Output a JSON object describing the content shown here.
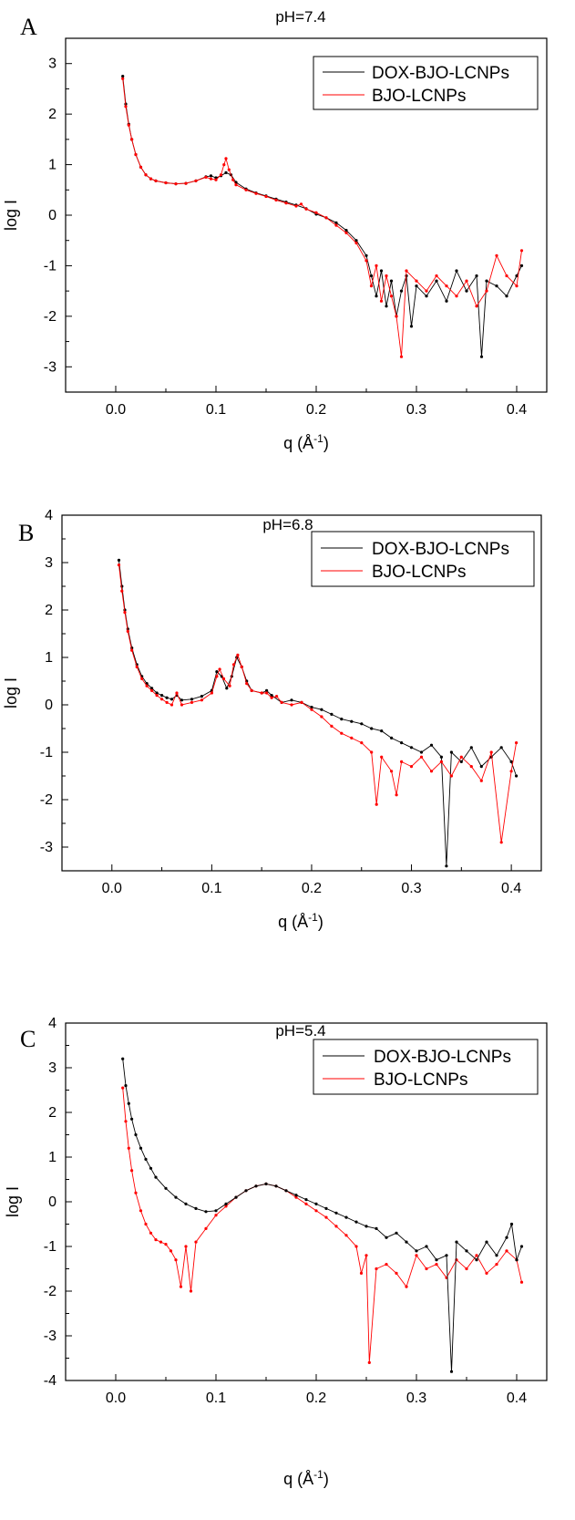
{
  "chart_data": [
    {
      "type": "line",
      "panel_label": "A",
      "title": "pH=7.4",
      "xlabel": "q (Å",
      "xlabel_sup": "-1",
      "xlabel_close": ")",
      "ylabel": "log I",
      "xlim": [
        -0.05,
        0.43
      ],
      "ylim": [
        -3.5,
        3.5
      ],
      "xticks": [
        "0.0",
        "0.1",
        "0.2",
        "0.3",
        "0.4"
      ],
      "yticks": [
        "3",
        "2",
        "1",
        "0",
        "-1",
        "-2",
        "-3"
      ],
      "legend_position": "top-right",
      "series": [
        {
          "name": "DOX-BJO-LCNPs",
          "color": "#000000",
          "x": [
            0.007,
            0.01,
            0.013,
            0.016,
            0.02,
            0.025,
            0.03,
            0.035,
            0.04,
            0.05,
            0.06,
            0.07,
            0.08,
            0.09,
            0.095,
            0.1,
            0.105,
            0.11,
            0.115,
            0.12,
            0.13,
            0.14,
            0.15,
            0.16,
            0.17,
            0.18,
            0.19,
            0.2,
            0.21,
            0.22,
            0.23,
            0.24,
            0.25,
            0.255,
            0.26,
            0.265,
            0.27,
            0.275,
            0.28,
            0.285,
            0.29,
            0.295,
            0.3,
            0.31,
            0.32,
            0.33,
            0.34,
            0.35,
            0.36,
            0.365,
            0.37,
            0.38,
            0.39,
            0.4,
            0.405
          ],
          "y": [
            2.75,
            2.2,
            1.8,
            1.5,
            1.2,
            0.95,
            0.8,
            0.72,
            0.68,
            0.64,
            0.62,
            0.63,
            0.68,
            0.76,
            0.78,
            0.74,
            0.78,
            0.84,
            0.8,
            0.65,
            0.52,
            0.44,
            0.38,
            0.32,
            0.26,
            0.2,
            0.13,
            0.02,
            -0.05,
            -0.15,
            -0.3,
            -0.5,
            -0.8,
            -1.2,
            -1.6,
            -1.1,
            -1.8,
            -1.3,
            -2.0,
            -1.5,
            -1.2,
            -2.2,
            -1.4,
            -1.6,
            -1.3,
            -1.7,
            -1.1,
            -1.5,
            -1.2,
            -2.8,
            -1.3,
            -1.4,
            -1.6,
            -1.2,
            -1.0
          ]
        },
        {
          "name": "BJO-LCNPs",
          "color": "#ff0000",
          "x": [
            0.007,
            0.01,
            0.013,
            0.016,
            0.02,
            0.025,
            0.03,
            0.035,
            0.04,
            0.05,
            0.06,
            0.07,
            0.08,
            0.09,
            0.095,
            0.1,
            0.105,
            0.108,
            0.11,
            0.113,
            0.117,
            0.12,
            0.13,
            0.14,
            0.15,
            0.16,
            0.17,
            0.18,
            0.185,
            0.19,
            0.2,
            0.21,
            0.22,
            0.23,
            0.24,
            0.25,
            0.255,
            0.26,
            0.265,
            0.27,
            0.275,
            0.28,
            0.285,
            0.29,
            0.3,
            0.31,
            0.32,
            0.33,
            0.34,
            0.35,
            0.36,
            0.37,
            0.38,
            0.39,
            0.4,
            0.405
          ],
          "y": [
            2.7,
            2.15,
            1.78,
            1.5,
            1.2,
            0.95,
            0.8,
            0.72,
            0.68,
            0.64,
            0.62,
            0.63,
            0.68,
            0.75,
            0.72,
            0.7,
            0.8,
            1.0,
            1.12,
            0.9,
            0.7,
            0.6,
            0.5,
            0.43,
            0.37,
            0.3,
            0.24,
            0.18,
            0.22,
            0.12,
            0.05,
            -0.05,
            -0.2,
            -0.35,
            -0.55,
            -0.9,
            -1.4,
            -1.0,
            -1.7,
            -1.2,
            -1.6,
            -2.0,
            -2.8,
            -1.1,
            -1.3,
            -1.5,
            -1.2,
            -1.4,
            -1.6,
            -1.3,
            -1.8,
            -1.5,
            -0.8,
            -1.2,
            -1.4,
            -0.7
          ]
        }
      ]
    },
    {
      "type": "line",
      "panel_label": "B",
      "title": "pH=6.8",
      "xlabel": "q (Å",
      "xlabel_sup": "-1",
      "xlabel_close": ")",
      "ylabel": "log I",
      "xlim": [
        -0.05,
        0.43
      ],
      "ylim": [
        -3.5,
        4.0
      ],
      "xticks": [
        "0.0",
        "0.1",
        "0.2",
        "0.3",
        "0.4"
      ],
      "yticks": [
        "4",
        "3",
        "2",
        "1",
        "0",
        "-1",
        "-2",
        "-3"
      ],
      "legend_position": "top-right",
      "series": [
        {
          "name": "DOX-BJO-LCNPs",
          "color": "#000000",
          "x": [
            0.007,
            0.01,
            0.013,
            0.016,
            0.02,
            0.025,
            0.03,
            0.035,
            0.04,
            0.045,
            0.05,
            0.055,
            0.06,
            0.065,
            0.07,
            0.08,
            0.09,
            0.1,
            0.105,
            0.11,
            0.115,
            0.12,
            0.125,
            0.13,
            0.135,
            0.14,
            0.15,
            0.155,
            0.16,
            0.17,
            0.18,
            0.19,
            0.2,
            0.21,
            0.22,
            0.23,
            0.24,
            0.25,
            0.26,
            0.27,
            0.28,
            0.29,
            0.3,
            0.31,
            0.32,
            0.33,
            0.335,
            0.34,
            0.35,
            0.36,
            0.37,
            0.38,
            0.39,
            0.4,
            0.405
          ],
          "y": [
            3.05,
            2.5,
            2.0,
            1.6,
            1.2,
            0.85,
            0.6,
            0.45,
            0.35,
            0.25,
            0.2,
            0.15,
            0.12,
            0.2,
            0.1,
            0.12,
            0.18,
            0.3,
            0.7,
            0.6,
            0.35,
            0.6,
            1.0,
            0.8,
            0.5,
            0.3,
            0.25,
            0.3,
            0.2,
            0.05,
            0.1,
            0.05,
            -0.05,
            -0.1,
            -0.2,
            -0.3,
            -0.35,
            -0.4,
            -0.5,
            -0.55,
            -0.7,
            -0.8,
            -0.9,
            -1.0,
            -0.85,
            -1.1,
            -3.4,
            -1.0,
            -1.2,
            -0.9,
            -1.3,
            -1.1,
            -0.9,
            -1.2,
            -1.5
          ]
        },
        {
          "name": "BJO-LCNPs",
          "color": "#ff0000",
          "x": [
            0.007,
            0.01,
            0.013,
            0.016,
            0.02,
            0.025,
            0.03,
            0.035,
            0.04,
            0.045,
            0.05,
            0.055,
            0.06,
            0.065,
            0.07,
            0.08,
            0.09,
            0.1,
            0.105,
            0.108,
            0.112,
            0.118,
            0.122,
            0.126,
            0.13,
            0.135,
            0.14,
            0.15,
            0.155,
            0.16,
            0.165,
            0.17,
            0.18,
            0.19,
            0.2,
            0.21,
            0.22,
            0.23,
            0.24,
            0.25,
            0.26,
            0.265,
            0.27,
            0.28,
            0.285,
            0.29,
            0.3,
            0.31,
            0.32,
            0.33,
            0.34,
            0.35,
            0.36,
            0.37,
            0.38,
            0.39,
            0.4,
            0.405
          ],
          "y": [
            2.95,
            2.4,
            1.95,
            1.55,
            1.15,
            0.8,
            0.55,
            0.4,
            0.3,
            0.2,
            0.12,
            0.05,
            0.0,
            0.25,
            0.0,
            0.05,
            0.1,
            0.25,
            0.6,
            0.75,
            0.55,
            0.4,
            0.85,
            1.05,
            0.8,
            0.45,
            0.3,
            0.25,
            0.25,
            0.15,
            0.18,
            0.05,
            0.0,
            0.05,
            -0.1,
            -0.25,
            -0.45,
            -0.6,
            -0.7,
            -0.8,
            -1.0,
            -2.1,
            -1.1,
            -1.4,
            -1.9,
            -1.2,
            -1.3,
            -1.1,
            -1.4,
            -1.2,
            -1.5,
            -1.1,
            -1.3,
            -1.6,
            -1.0,
            -2.9,
            -1.4,
            -0.8
          ]
        }
      ]
    },
    {
      "type": "line",
      "panel_label": "C",
      "title": "pH=5.4",
      "xlabel": "q (Å",
      "xlabel_sup": "-1",
      "xlabel_close": ")",
      "ylabel": "log I",
      "xlim": [
        -0.05,
        0.43
      ],
      "ylim": [
        -4.0,
        4.0
      ],
      "xticks": [
        "0.0",
        "0.1",
        "0.2",
        "0.3",
        "0.4"
      ],
      "yticks": [
        "4",
        "3",
        "2",
        "1",
        "0",
        "-1",
        "-2",
        "-3",
        "-4"
      ],
      "legend_position": "top-right",
      "series": [
        {
          "name": "DOX-BJO-LCNPs",
          "color": "#000000",
          "x": [
            0.007,
            0.01,
            0.013,
            0.016,
            0.02,
            0.025,
            0.03,
            0.035,
            0.04,
            0.05,
            0.06,
            0.07,
            0.08,
            0.09,
            0.1,
            0.11,
            0.12,
            0.13,
            0.14,
            0.15,
            0.16,
            0.17,
            0.18,
            0.19,
            0.2,
            0.21,
            0.22,
            0.23,
            0.24,
            0.25,
            0.26,
            0.27,
            0.28,
            0.29,
            0.3,
            0.31,
            0.32,
            0.33,
            0.335,
            0.34,
            0.35,
            0.36,
            0.37,
            0.38,
            0.39,
            0.395,
            0.4,
            0.405
          ],
          "y": [
            3.2,
            2.6,
            2.2,
            1.85,
            1.5,
            1.2,
            0.95,
            0.75,
            0.55,
            0.3,
            0.1,
            -0.05,
            -0.15,
            -0.22,
            -0.2,
            -0.05,
            0.1,
            0.25,
            0.35,
            0.4,
            0.35,
            0.25,
            0.15,
            0.05,
            -0.05,
            -0.15,
            -0.25,
            -0.35,
            -0.45,
            -0.55,
            -0.6,
            -0.8,
            -0.7,
            -0.9,
            -1.1,
            -1.0,
            -1.3,
            -1.2,
            -3.8,
            -0.9,
            -1.1,
            -1.3,
            -0.9,
            -1.2,
            -0.8,
            -0.5,
            -1.3,
            -1.0
          ]
        },
        {
          "name": "BJO-LCNPs",
          "color": "#ff0000",
          "x": [
            0.007,
            0.01,
            0.013,
            0.016,
            0.02,
            0.025,
            0.03,
            0.035,
            0.04,
            0.045,
            0.05,
            0.055,
            0.06,
            0.065,
            0.07,
            0.075,
            0.08,
            0.09,
            0.1,
            0.11,
            0.12,
            0.13,
            0.14,
            0.15,
            0.16,
            0.17,
            0.18,
            0.19,
            0.2,
            0.21,
            0.22,
            0.23,
            0.24,
            0.245,
            0.25,
            0.253,
            0.26,
            0.27,
            0.28,
            0.29,
            0.3,
            0.31,
            0.32,
            0.33,
            0.34,
            0.35,
            0.36,
            0.37,
            0.38,
            0.39,
            0.4,
            0.405
          ],
          "y": [
            2.55,
            1.8,
            1.2,
            0.7,
            0.2,
            -0.2,
            -0.5,
            -0.7,
            -0.85,
            -0.9,
            -0.95,
            -1.1,
            -1.3,
            -1.9,
            -1.0,
            -2.0,
            -0.9,
            -0.6,
            -0.3,
            -0.1,
            0.1,
            0.25,
            0.35,
            0.4,
            0.35,
            0.25,
            0.1,
            -0.05,
            -0.2,
            -0.35,
            -0.55,
            -0.75,
            -1.0,
            -1.6,
            -1.2,
            -3.6,
            -1.5,
            -1.4,
            -1.6,
            -1.9,
            -1.2,
            -1.5,
            -1.4,
            -1.7,
            -1.3,
            -1.5,
            -1.2,
            -1.6,
            -1.4,
            -1.1,
            -1.3,
            -1.8
          ]
        }
      ]
    }
  ]
}
